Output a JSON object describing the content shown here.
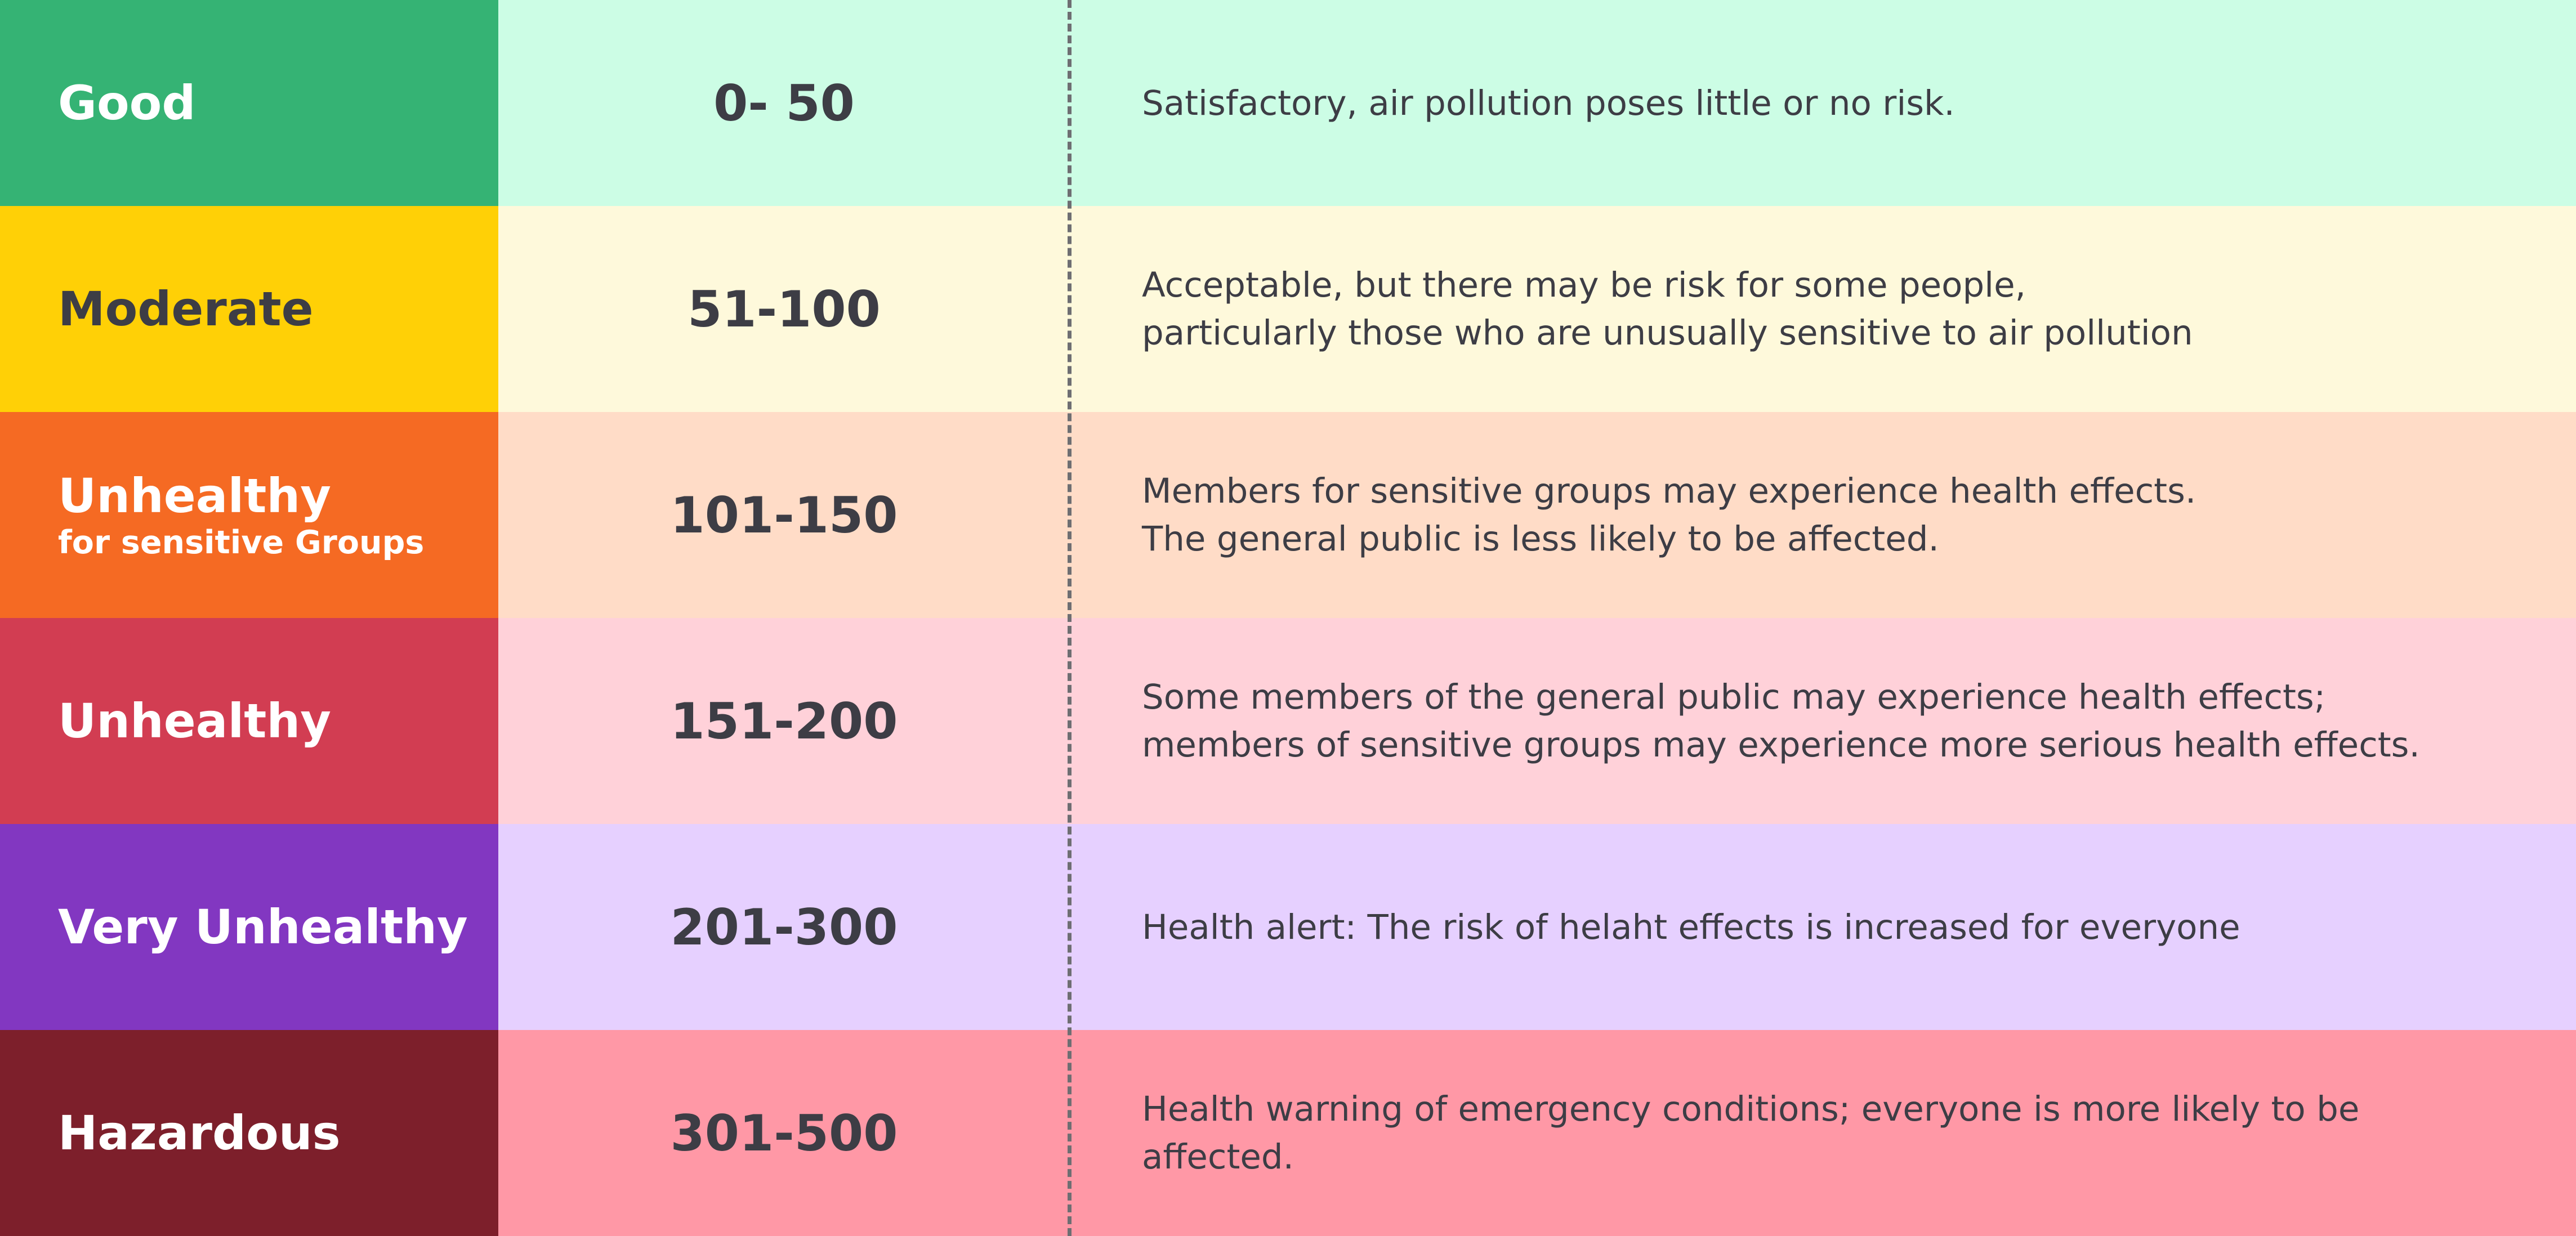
{
  "rows": [
    {
      "level": "Good",
      "sublabel": "",
      "range": "0- 50",
      "description": [
        "Satisfactory, air pollution poses little or no risk."
      ],
      "level_color": "#35b374",
      "level_text_color": "#ffffff",
      "row_color": "#ccfde5"
    },
    {
      "level": "Moderate",
      "sublabel": "",
      "range": "51-100",
      "description": [
        "Acceptable, but there may be risk for some people,",
        "particularly those who are unusually sensitive to air pollution"
      ],
      "level_color": "#ffd006",
      "level_text_color": "#3d3d45",
      "row_color": "#fef9db"
    },
    {
      "level": "Unhealthy",
      "sublabel": "for sensitive Groups",
      "range": "101-150",
      "description": [
        "Members for sensitive groups may experience health effects.",
        "The general public is less likely to be affected."
      ],
      "level_color": "#f56a23",
      "level_text_color": "#ffffff",
      "row_color": "#ffdcc7"
    },
    {
      "level": "Unhealthy",
      "sublabel": "",
      "range": "151-200",
      "description": [
        "Some members of the general public may experience health effects;",
        "members of sensitive groups may experience more serious health effects."
      ],
      "level_color": "#d23d52",
      "level_text_color": "#ffffff",
      "row_color": "#ffd1d9"
    },
    {
      "level": "Very Unhealthy",
      "sublabel": "",
      "range": "201-300",
      "description": [
        "Health alert: The risk of helaht effects is increased for everyone"
      ],
      "level_color": "#8237c1",
      "level_text_color": "#ffffff",
      "row_color": "#e6d0ff"
    },
    {
      "level": "Hazardous",
      "sublabel": "",
      "range": "301-500",
      "description": [
        "Health warning of emergency conditions; everyone is more likely to be",
        "affected."
      ],
      "level_color": "#7d1f2b",
      "level_text_color": "#ffffff",
      "row_color": "#ff98a6"
    }
  ],
  "divider_color": "#6e6e72"
}
